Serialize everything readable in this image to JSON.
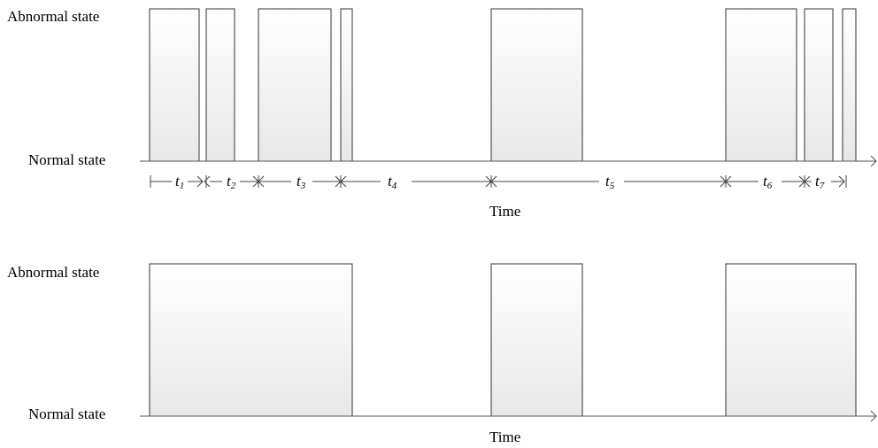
{
  "panels": [
    {
      "abnormal_label": "Abnormal state",
      "normal_label": "Normal state",
      "time_label": "Time",
      "intervals": [
        {
          "name": "t",
          "sub": "1"
        },
        {
          "name": "t",
          "sub": "2"
        },
        {
          "name": "t",
          "sub": "3"
        },
        {
          "name": "t",
          "sub": "4"
        },
        {
          "name": "t",
          "sub": "5"
        },
        {
          "name": "t",
          "sub": "6"
        },
        {
          "name": "t",
          "sub": "7"
        }
      ]
    },
    {
      "abnormal_label": "Abnormal state",
      "normal_label": "Normal state",
      "time_label": "Time"
    }
  ],
  "colors": {
    "box_fill_top": "#ffffff",
    "box_fill_bottom": "#e8e8e8",
    "box_stroke": "#333333",
    "axis": "#555555"
  }
}
